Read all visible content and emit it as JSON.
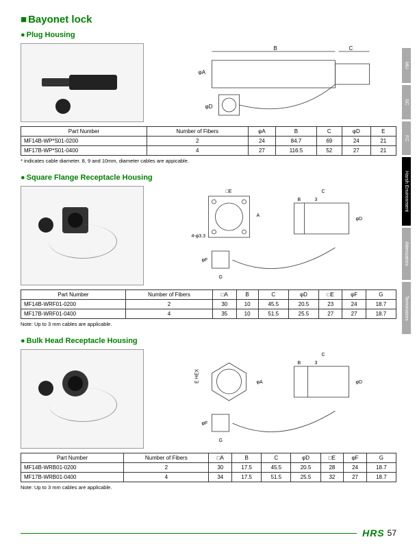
{
  "title": "Bayonet lock",
  "page_number": "57",
  "logo": "HRS",
  "sections": {
    "plug": {
      "title": "Plug Housing",
      "headers": [
        "Part Number",
        "Number of Fibers",
        "φA",
        "B",
        "C",
        "φD",
        "E"
      ],
      "rows": [
        [
          "MF14B-WP*S01-0200",
          "2",
          "24",
          "84.7",
          "69",
          "24",
          "21"
        ],
        [
          "MF17B-WP*S01-0400",
          "4",
          "27",
          "116.5",
          "52",
          "27",
          "21"
        ]
      ],
      "note": "* indicates cable diameter. 8, 9 and 10mm, diameter cables are appicable."
    },
    "square": {
      "title": "Square Flange Receptacle Housing",
      "headers": [
        "Part Number",
        "Number of Fibers",
        "□A",
        "B",
        "C",
        "φD",
        "□E",
        "φF",
        "G"
      ],
      "rows": [
        [
          "MF14B-WRF01-0200",
          "2",
          "30",
          "10",
          "45.5",
          "20.5",
          "23",
          "24",
          "18.7"
        ],
        [
          "MF17B-WRF01-0400",
          "4",
          "35",
          "10",
          "51.5",
          "25.5",
          "27",
          "27",
          "18.7"
        ]
      ],
      "note": "Note: Up to 3 mm cables are applicable."
    },
    "bulk": {
      "title": "Bulk Head Receptacle Housing",
      "headers": [
        "Part Number",
        "Number of Fibers",
        "□A",
        "B",
        "C",
        "φD",
        "□E",
        "φF",
        "G"
      ],
      "rows": [
        [
          "MF14B-WRB01-0200",
          "2",
          "30",
          "17.5",
          "45.5",
          "20.5",
          "28",
          "24",
          "18.7"
        ],
        [
          "MF17B-WRB01-0400",
          "4",
          "34",
          "17.5",
          "51.5",
          "25.5",
          "32",
          "27",
          "18.7"
        ]
      ],
      "note": "Note: Up to 3 mm cables are applicable."
    }
  },
  "tabs": [
    {
      "label": "MU",
      "active": false
    },
    {
      "label": "SC",
      "active": false
    },
    {
      "label": "FC",
      "active": false
    },
    {
      "label": "Harsh Environment",
      "active": true
    },
    {
      "label": "Attenuators",
      "active": false
    },
    {
      "label": "Terminators",
      "active": false
    }
  ],
  "diagram_labels": {
    "plug": {
      "B": "B",
      "C": "C",
      "phiA": "φA",
      "phiD": "φD"
    },
    "square": {
      "E": "□E",
      "C": "C",
      "B": "B",
      "3": "3",
      "A": "A",
      "phiD": "φD",
      "phiF": "φF",
      "G": "G",
      "holes": "4-φ3.3"
    },
    "bulk": {
      "EHEX": "E HEX",
      "C": "C",
      "B": "B",
      "3": "3",
      "phiA": "φA",
      "phiD": "φD",
      "phiF": "φF",
      "G": "G"
    }
  }
}
